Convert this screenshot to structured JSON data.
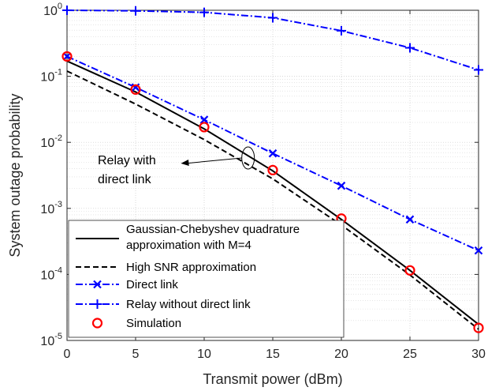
{
  "chart_data": {
    "type": "line",
    "xlabel": "Transmit power (dBm)",
    "ylabel": "System outage probability",
    "xlim": [
      0,
      30
    ],
    "ylim": [
      1e-05,
      1
    ],
    "yscale": "log",
    "grid": true,
    "minor_grid": true,
    "x_ticks": [
      0,
      5,
      10,
      15,
      20,
      25,
      30
    ],
    "y_tick_exponents": [
      -5,
      -4,
      -3,
      -2,
      -1,
      0
    ],
    "y_tick_base": "10",
    "legend_position": "bottom-left",
    "series": [
      {
        "name": "Gaussian-Chebyshev quadrature approximation with M=4",
        "name_lines": [
          "Gaussian-Chebyshev quadrature",
          "approximation with M=4"
        ],
        "style": "solid",
        "color": "#000000",
        "marker": "none",
        "x": [
          0,
          5,
          10,
          15,
          20,
          25,
          30
        ],
        "y": [
          0.17,
          0.058,
          0.016,
          0.0037,
          0.00068,
          0.000115,
          1.75e-05
        ]
      },
      {
        "name": "High SNR approximation",
        "style": "dashed",
        "color": "#000000",
        "marker": "none",
        "x": [
          0,
          5,
          10,
          15,
          20,
          25,
          30
        ],
        "y": [
          0.12,
          0.038,
          0.011,
          0.0028,
          0.00056,
          9.8e-05,
          1.48e-05
        ]
      },
      {
        "name": "Direct link",
        "style": "dashdot",
        "color": "#0000ff",
        "marker": "x",
        "x": [
          0,
          5,
          10,
          15,
          20,
          25,
          30
        ],
        "y": [
          0.2,
          0.068,
          0.022,
          0.0068,
          0.0022,
          0.00068,
          0.00023
        ]
      },
      {
        "name": "Relay without direct link",
        "style": "dashdot",
        "color": "#0000ff",
        "marker": "+",
        "x": [
          0,
          5,
          10,
          15,
          20,
          25,
          30
        ],
        "y": [
          1.0,
          0.98,
          0.93,
          0.77,
          0.49,
          0.27,
          0.125
        ]
      },
      {
        "name": "Simulation",
        "style": "none",
        "color": "#ff0000",
        "marker": "o",
        "x": [
          0,
          5,
          10,
          15,
          20,
          25,
          30
        ],
        "y": [
          0.2,
          0.063,
          0.017,
          0.0038,
          0.0007,
          0.000115,
          1.55e-05
        ]
      }
    ],
    "annotation": {
      "text_lines": [
        "Relay with",
        "direct link"
      ],
      "ellipse_center": [
        13.2,
        0.0058
      ],
      "arrow_tip": [
        8.3,
        0.0048
      ]
    }
  }
}
